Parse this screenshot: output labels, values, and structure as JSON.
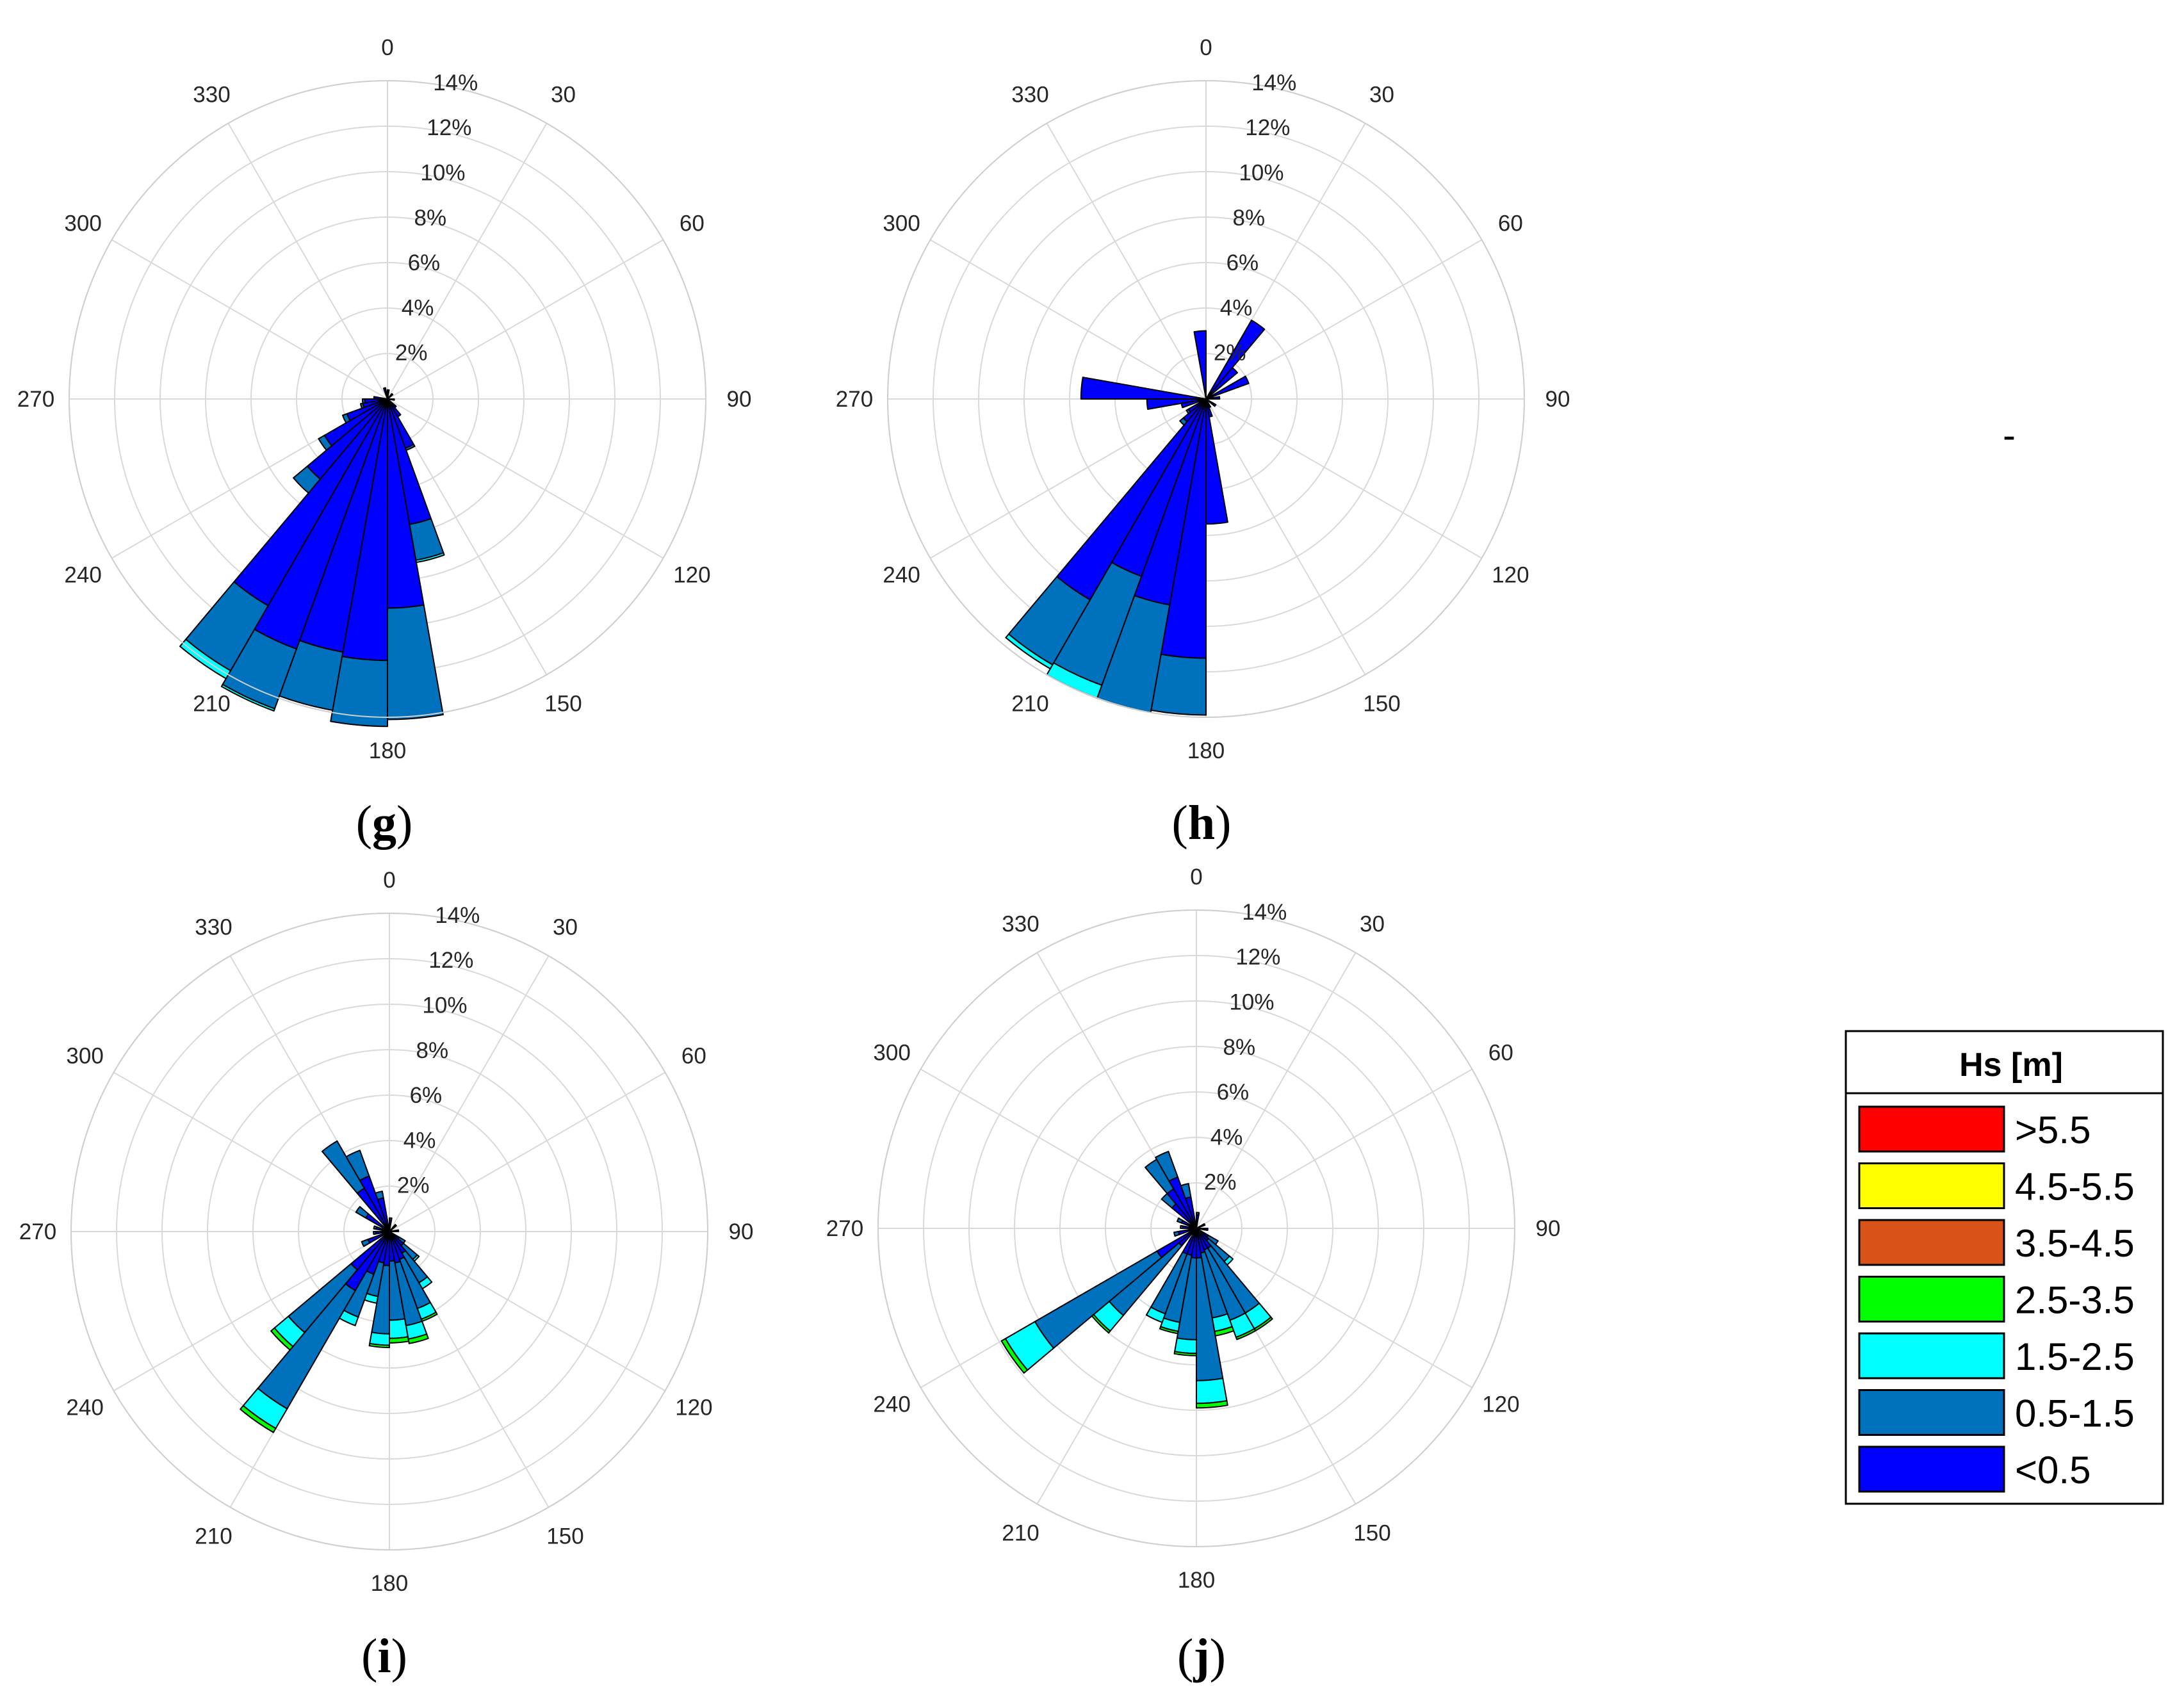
{
  "panels": [
    {
      "id": "g",
      "label_open": "(",
      "label_letter": "g",
      "label_close": ")"
    },
    {
      "id": "h",
      "label_open": "(",
      "label_letter": "h",
      "label_close": ")"
    },
    {
      "id": "i",
      "label_open": "(",
      "label_letter": "i",
      "label_close": ")"
    },
    {
      "id": "j",
      "label_open": "(",
      "label_letter": "j",
      "label_close": ")"
    }
  ],
  "stray_mark": "-",
  "legend": {
    "title": "Hs [m]",
    "items": [
      {
        "label": ">5.5",
        "color": "#ff0000"
      },
      {
        "label": "4.5-5.5",
        "color": "#ffff00"
      },
      {
        "label": "3.5-4.5",
        "color": "#d95319"
      },
      {
        "label": "2.5-3.5",
        "color": "#00ff00"
      },
      {
        "label": "1.5-2.5",
        "color": "#00ffff"
      },
      {
        "label": "0.5-1.5",
        "color": "#0072bd"
      },
      {
        "label": "<0.5",
        "color": "#0000ff"
      }
    ]
  },
  "chart_data": [
    {
      "panel": "g",
      "type": "wind-rose",
      "angle_ticks": [
        "0",
        "30",
        "60",
        "90",
        "120",
        "150",
        "180",
        "210",
        "240",
        "270",
        "300",
        "330"
      ],
      "radial_ticks": [
        "2%",
        "4%",
        "6%",
        "8%",
        "10%",
        "12%",
        "14%"
      ],
      "rlim": [
        0,
        14
      ],
      "bin_order": [
        "<0.5",
        "0.5-1.5",
        "1.5-2.5",
        "2.5-3.5"
      ],
      "sectors": [
        {
          "direction": 175,
          "values": [
            9.2,
            4.9,
            0.0,
            0.0
          ]
        },
        {
          "direction": 185,
          "values": [
            11.5,
            2.9,
            0.0,
            0.0
          ]
        },
        {
          "direction": 195,
          "values": [
            11.3,
            2.6,
            0.0,
            0.0
          ]
        },
        {
          "direction": 205,
          "values": [
            11.7,
            2.8,
            0.1,
            0.0
          ]
        },
        {
          "direction": 215,
          "values": [
            10.5,
            3.3,
            0.4,
            0.0
          ]
        },
        {
          "direction": 165,
          "values": [
            5.6,
            1.6,
            0.1,
            0.0
          ]
        },
        {
          "direction": 155,
          "values": [
            2.3,
            0.1,
            0.0,
            0.0
          ]
        },
        {
          "direction": 225,
          "values": [
            4.6,
            0.8,
            0.0,
            0.0
          ]
        },
        {
          "direction": 235,
          "values": [
            3.2,
            0.3,
            0.0,
            0.0
          ]
        },
        {
          "direction": 245,
          "values": [
            1.9,
            0.2,
            0.0,
            0.0
          ]
        },
        {
          "direction": 255,
          "values": [
            1.1,
            0.1,
            0.0,
            0.0
          ]
        },
        {
          "direction": 265,
          "values": [
            1.0,
            0.1,
            0.0,
            0.0
          ]
        },
        {
          "direction": 275,
          "values": [
            0.6,
            0.0,
            0.0,
            0.0
          ]
        },
        {
          "direction": 145,
          "values": [
            0.9,
            0.0,
            0.0,
            0.0
          ]
        },
        {
          "direction": 135,
          "values": [
            0.5,
            0.0,
            0.0,
            0.0
          ]
        },
        {
          "direction": 5,
          "values": [
            0.4,
            0.0,
            0.0,
            0.0
          ]
        },
        {
          "direction": 345,
          "values": [
            0.5,
            0.0,
            0.0,
            0.0
          ]
        },
        {
          "direction": 45,
          "values": [
            0.3,
            0.0,
            0.0,
            0.0
          ]
        },
        {
          "direction": 95,
          "values": [
            0.3,
            0.0,
            0.0,
            0.0
          ]
        }
      ]
    },
    {
      "panel": "h",
      "type": "wind-rose",
      "angle_ticks": [
        "0",
        "30",
        "60",
        "90",
        "120",
        "150",
        "180",
        "210",
        "240",
        "270",
        "300",
        "330"
      ],
      "radial_ticks": [
        "2%",
        "4%",
        "6%",
        "8%",
        "10%",
        "12%",
        "14%"
      ],
      "rlim": [
        0,
        14
      ],
      "bin_order": [
        "<0.5",
        "0.5-1.5",
        "1.5-2.5",
        "2.5-3.5"
      ],
      "sectors": [
        {
          "direction": 175,
          "values": [
            5.5,
            0.0,
            0.0,
            0.0
          ]
        },
        {
          "direction": 185,
          "values": [
            11.4,
            2.5,
            0.0,
            0.0
          ]
        },
        {
          "direction": 195,
          "values": [
            9.2,
            4.8,
            0.0,
            0.0
          ]
        },
        {
          "direction": 205,
          "values": [
            8.3,
            5.1,
            0.6,
            0.0
          ]
        },
        {
          "direction": 215,
          "values": [
            10.2,
            3.3,
            0.2,
            0.0
          ]
        },
        {
          "direction": 225,
          "values": [
            1.3,
            0.2,
            0.0,
            0.0
          ]
        },
        {
          "direction": 235,
          "values": [
            0.9,
            0.1,
            0.0,
            0.0
          ]
        },
        {
          "direction": 255,
          "values": [
            1.1,
            0.0,
            0.0,
            0.0
          ]
        },
        {
          "direction": 265,
          "values": [
            2.6,
            0.0,
            0.0,
            0.0
          ]
        },
        {
          "direction": 275,
          "values": [
            5.5,
            0.0,
            0.0,
            0.0
          ]
        },
        {
          "direction": 355,
          "values": [
            3.0,
            0.0,
            0.0,
            0.0
          ]
        },
        {
          "direction": 35,
          "values": [
            4.0,
            0.0,
            0.0,
            0.0
          ]
        },
        {
          "direction": 45,
          "values": [
            1.8,
            0.0,
            0.0,
            0.0
          ]
        },
        {
          "direction": 65,
          "values": [
            2.0,
            0.0,
            0.0,
            0.0
          ]
        },
        {
          "direction": 85,
          "values": [
            0.6,
            0.0,
            0.0,
            0.0
          ]
        },
        {
          "direction": 125,
          "values": [
            0.5,
            0.0,
            0.0,
            0.0
          ]
        },
        {
          "direction": 155,
          "values": [
            0.4,
            0.0,
            0.0,
            0.0
          ]
        },
        {
          "direction": 165,
          "values": [
            0.8,
            0.0,
            0.0,
            0.0
          ]
        }
      ]
    },
    {
      "panel": "i",
      "type": "wind-rose",
      "angle_ticks": [
        "0",
        "30",
        "60",
        "90",
        "120",
        "150",
        "180",
        "210",
        "240",
        "270",
        "300",
        "330"
      ],
      "radial_ticks": [
        "2%",
        "4%",
        "6%",
        "8%",
        "10%",
        "12%",
        "14%"
      ],
      "rlim": [
        0,
        14
      ],
      "bin_order": [
        "<0.5",
        "0.5-1.5",
        "1.5-2.5",
        "2.5-3.5"
      ],
      "sectors": [
        {
          "direction": 215,
          "values": [
            3.0,
            6.0,
            1.0,
            0.2
          ]
        },
        {
          "direction": 225,
          "values": [
            2.2,
            3.6,
            0.8,
            0.2
          ]
        },
        {
          "direction": 215,
          "values": [
            0.0,
            0.0,
            0.0,
            0.0
          ]
        },
        {
          "direction": 205,
          "values": [
            2.0,
            2.0,
            0.4,
            0.0
          ]
        },
        {
          "direction": 195,
          "values": [
            1.4,
            1.5,
            0.3,
            0.0
          ]
        },
        {
          "direction": 185,
          "values": [
            1.5,
            3.0,
            0.5,
            0.1
          ]
        },
        {
          "direction": 175,
          "values": [
            1.3,
            2.6,
            0.8,
            0.2
          ]
        },
        {
          "direction": 165,
          "values": [
            1.4,
            2.8,
            0.6,
            0.2
          ]
        },
        {
          "direction": 155,
          "values": [
            1.3,
            2.3,
            0.5,
            0.1
          ]
        },
        {
          "direction": 145,
          "values": [
            1.1,
            1.5,
            0.3,
            0.0
          ]
        },
        {
          "direction": 135,
          "values": [
            0.8,
            0.8,
            0.1,
            0.0
          ]
        },
        {
          "direction": 125,
          "values": [
            0.5,
            0.3,
            0.0,
            0.0
          ]
        },
        {
          "direction": 245,
          "values": [
            1.0,
            0.3,
            0.0,
            0.0
          ]
        },
        {
          "direction": 265,
          "values": [
            0.6,
            0.1,
            0.0,
            0.0
          ]
        },
        {
          "direction": 285,
          "values": [
            0.6,
            0.1,
            0.0,
            0.0
          ]
        },
        {
          "direction": 305,
          "values": [
            1.2,
            0.5,
            0.0,
            0.0
          ]
        },
        {
          "direction": 325,
          "values": [
            2.2,
            2.4,
            0.0,
            0.0
          ]
        },
        {
          "direction": 335,
          "values": [
            2.6,
            1.2,
            0.0,
            0.0
          ]
        },
        {
          "direction": 345,
          "values": [
            1.5,
            0.3,
            0.0,
            0.0
          ]
        },
        {
          "direction": 5,
          "values": [
            0.5,
            0.1,
            0.0,
            0.0
          ]
        },
        {
          "direction": 45,
          "values": [
            0.4,
            0.0,
            0.0,
            0.0
          ]
        },
        {
          "direction": 85,
          "values": [
            0.4,
            0.0,
            0.0,
            0.0
          ]
        }
      ]
    },
    {
      "panel": "j",
      "type": "wind-rose",
      "angle_ticks": [
        "0",
        "30",
        "60",
        "90",
        "120",
        "150",
        "180",
        "210",
        "240",
        "270",
        "300",
        "330"
      ],
      "radial_ticks": [
        "2%",
        "4%",
        "6%",
        "8%",
        "10%",
        "12%",
        "14%"
      ],
      "rlim": [
        0,
        14
      ],
      "bin_order": [
        "<0.5",
        "0.5-1.5",
        "1.5-2.5",
        "2.5-3.5"
      ],
      "sectors": [
        {
          "direction": 235,
          "values": [
            2.0,
            6.2,
            1.5,
            0.2
          ]
        },
        {
          "direction": 225,
          "values": [
            1.0,
            4.0,
            0.9,
            0.1
          ]
        },
        {
          "direction": 205,
          "values": [
            1.2,
            2.8,
            0.4,
            0.0
          ]
        },
        {
          "direction": 195,
          "values": [
            1.2,
            3.0,
            0.4,
            0.1
          ]
        },
        {
          "direction": 185,
          "values": [
            1.3,
            3.6,
            0.6,
            0.1
          ]
        },
        {
          "direction": 175,
          "values": [
            1.3,
            5.4,
            1.0,
            0.2
          ]
        },
        {
          "direction": 165,
          "values": [
            1.1,
            2.9,
            0.6,
            0.2
          ]
        },
        {
          "direction": 155,
          "values": [
            1.0,
            3.3,
            0.8,
            0.1
          ]
        },
        {
          "direction": 145,
          "values": [
            1.0,
            3.3,
            0.8,
            0.1
          ]
        },
        {
          "direction": 135,
          "values": [
            0.7,
            1.2,
            0.2,
            0.0
          ]
        },
        {
          "direction": 125,
          "values": [
            0.6,
            0.5,
            0.0,
            0.0
          ]
        },
        {
          "direction": 255,
          "values": [
            0.8,
            0.2,
            0.0,
            0.0
          ]
        },
        {
          "direction": 275,
          "values": [
            0.6,
            0.1,
            0.0,
            0.0
          ]
        },
        {
          "direction": 295,
          "values": [
            0.7,
            0.2,
            0.0,
            0.0
          ]
        },
        {
          "direction": 315,
          "values": [
            1.4,
            0.6,
            0.0,
            0.0
          ]
        },
        {
          "direction": 325,
          "values": [
            2.0,
            1.5,
            0.0,
            0.0
          ]
        },
        {
          "direction": 335,
          "values": [
            2.4,
            1.2,
            0.0,
            0.0
          ]
        },
        {
          "direction": 345,
          "values": [
            1.4,
            0.6,
            0.0,
            0.0
          ]
        },
        {
          "direction": 5,
          "values": [
            0.6,
            0.1,
            0.0,
            0.0
          ]
        },
        {
          "direction": 65,
          "values": [
            0.4,
            0.0,
            0.0,
            0.0
          ]
        },
        {
          "direction": 95,
          "values": [
            0.5,
            0.0,
            0.0,
            0.0
          ]
        }
      ]
    }
  ]
}
